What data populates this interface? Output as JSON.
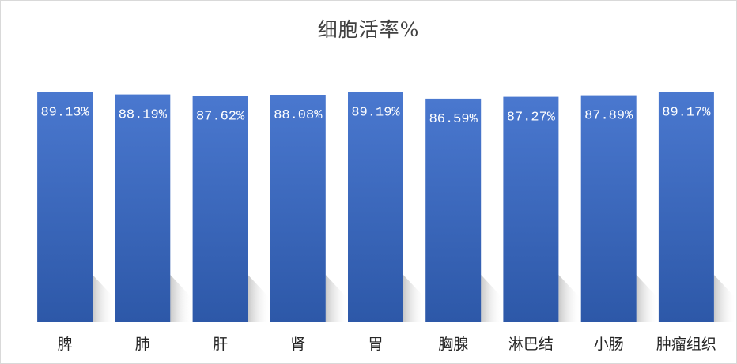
{
  "chart_data": {
    "type": "bar",
    "title": "细胞活率%",
    "xlabel": "",
    "ylabel": "",
    "categories": [
      "脾",
      "肺",
      "肝",
      "肾",
      "胃",
      "胸腺",
      "淋巴结",
      "小肠",
      "肿瘤组织"
    ],
    "values": [
      89.13,
      88.19,
      87.62,
      88.08,
      89.19,
      86.59,
      87.27,
      87.89,
      89.17
    ],
    "data_labels": [
      "89.13%",
      "88.19%",
      "87.62%",
      "88.08%",
      "89.19%",
      "86.59%",
      "87.27%",
      "87.89%",
      "89.17%"
    ],
    "ylim": [
      0,
      100
    ],
    "grid": false,
    "legend": "none",
    "colors": {
      "bar_top": "#4a78cf",
      "bar_bottom": "#2d58a8",
      "label_text": "#ffffff",
      "category_text": "#262626",
      "title_text": "#404040"
    }
  }
}
